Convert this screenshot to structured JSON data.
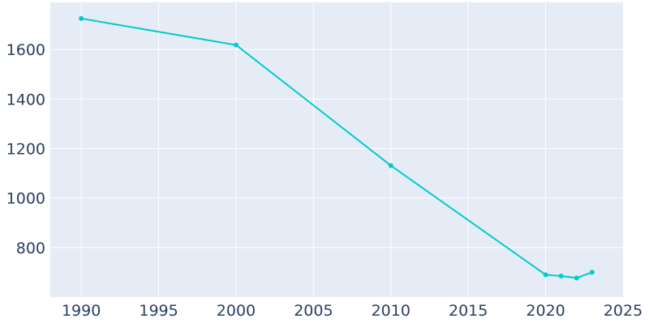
{
  "chart_data": {
    "type": "line",
    "title": "",
    "xlabel": "",
    "ylabel": "",
    "xlim": [
      1988,
      2025
    ],
    "ylim": [
      600,
      1790
    ],
    "x_ticks": [
      1990,
      1995,
      2000,
      2005,
      2010,
      2015,
      2020,
      2025
    ],
    "y_ticks": [
      800,
      1000,
      1200,
      1400,
      1600
    ],
    "grid": true,
    "legend": "none",
    "series": [
      {
        "x": [
          1990,
          2000,
          2010,
          2020,
          2021,
          2022,
          2023
        ],
        "y": [
          1725,
          1618,
          1131,
          690,
          685,
          677,
          700
        ]
      }
    ]
  },
  "style": {
    "plot_background": "#e5ecf6",
    "grid_color": "#ffffff",
    "line_color": "#00cccc",
    "tick_label_color": "#2a3f5f"
  }
}
